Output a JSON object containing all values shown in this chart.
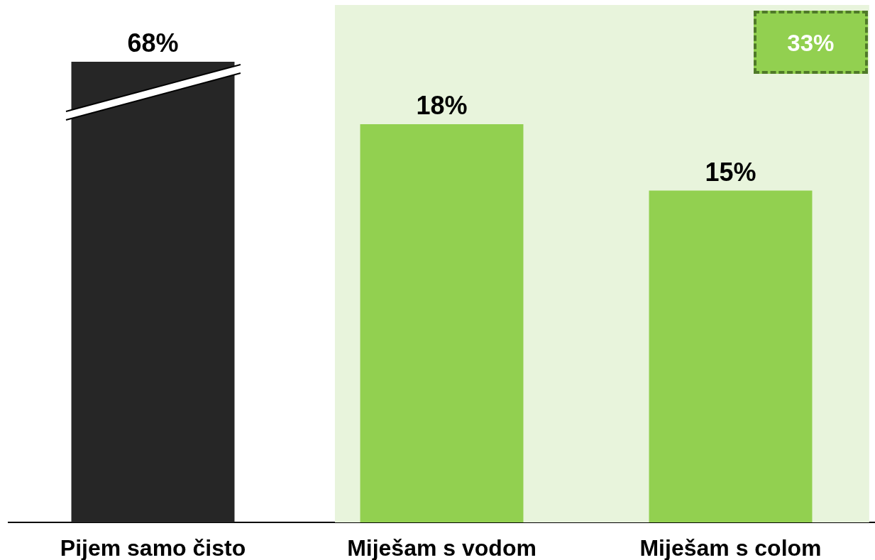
{
  "chart_data": {
    "type": "bar",
    "categories": [
      "Pijem samo čisto",
      "Miješam s vodom",
      "Miješam s colom"
    ],
    "series": [
      {
        "color": "#262626",
        "axis": "y2",
        "values": [
          68,
          null,
          null
        ],
        "value_labels": [
          "68%",
          null,
          null
        ]
      },
      {
        "color": "#92d050",
        "values": [
          null,
          18,
          15
        ],
        "value_labels": [
          null,
          "18%",
          "15%"
        ]
      }
    ],
    "tick_labels": "x",
    "bands": [
      {
        "axis": "x",
        "from": "Miješam s vodom",
        "to": "Miješam s colom",
        "label": "33%",
        "color": "#e8f4dc"
      }
    ]
  }
}
